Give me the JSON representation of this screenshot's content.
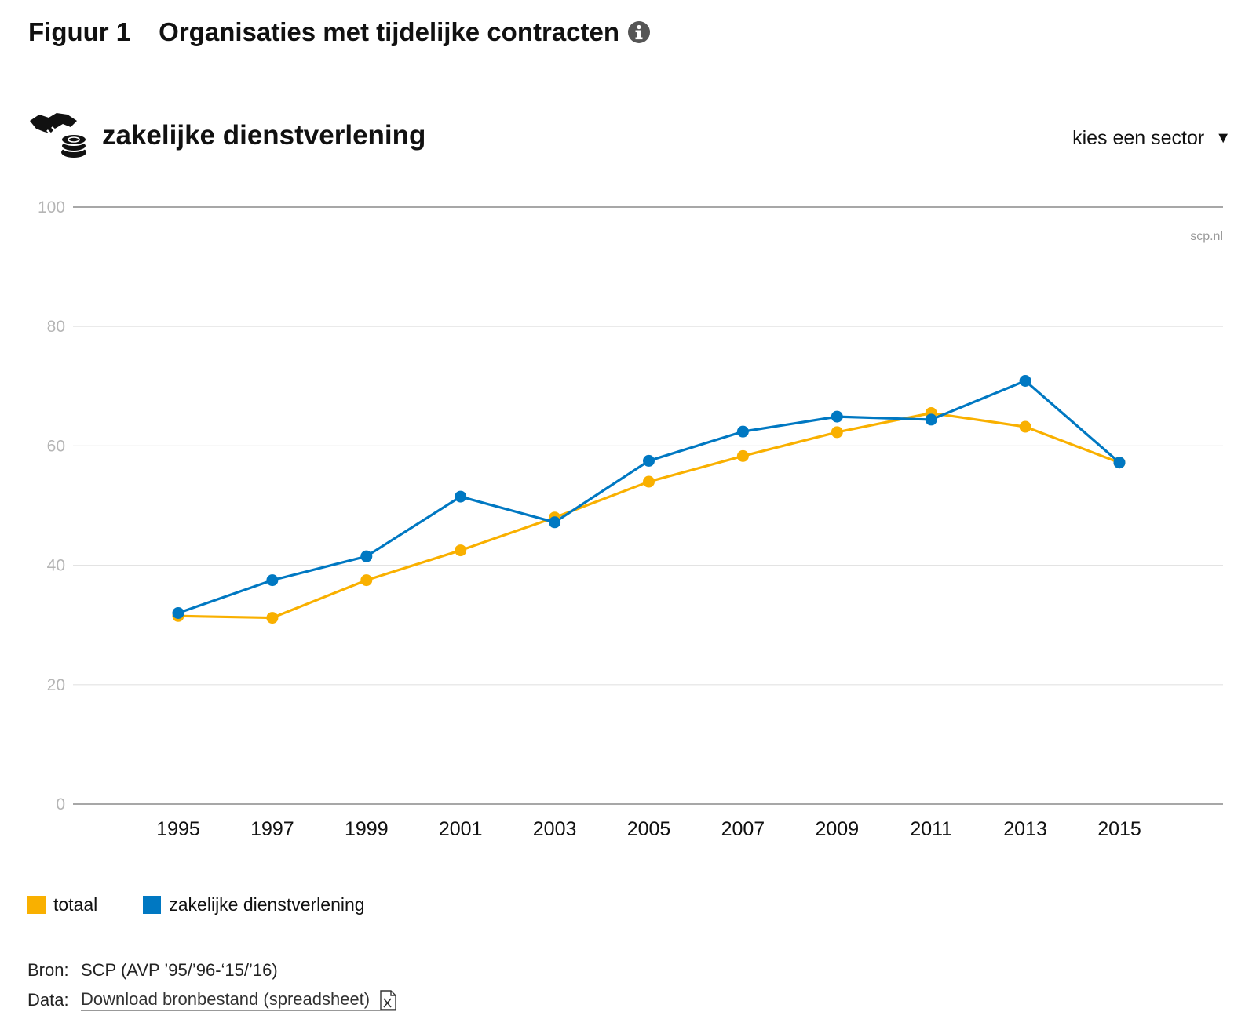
{
  "figure": {
    "label": "Figuur 1",
    "title": "Organisaties met tijdelijke contracten"
  },
  "sector": {
    "title": "zakelijke dienstverlening",
    "select_label": "kies een sector",
    "icon": "handshake-coins-icon"
  },
  "watermark": "scp.nl",
  "legend": [
    {
      "label": "totaal",
      "color": "#F9B000"
    },
    {
      "label": "zakelijke dienstverlening",
      "color": "#0078C2"
    }
  ],
  "source": {
    "bron_key": "Bron:",
    "bron_value": "SCP (AVP ’95/’96-‘15/’16)",
    "data_key": "Data:",
    "download_label": "Download bronbestand (spreadsheet)"
  },
  "chart_data": {
    "type": "line",
    "title": "",
    "xlabel": "",
    "ylabel": "",
    "ylim": [
      0,
      100
    ],
    "yticks": [
      0,
      20,
      40,
      60,
      80,
      100
    ],
    "x": [
      "1995",
      "1997",
      "1999",
      "2001",
      "2003",
      "2005",
      "2007",
      "2009",
      "2011",
      "2013",
      "2015"
    ],
    "grid": true,
    "legend_position": "bottom-left",
    "series": [
      {
        "name": "totaal",
        "color": "#F9B000",
        "values": [
          31.5,
          31.2,
          37.5,
          42.5,
          48.0,
          54.0,
          58.3,
          62.3,
          65.5,
          63.2,
          57.2
        ]
      },
      {
        "name": "zakelijke dienstverlening",
        "color": "#0078C2",
        "values": [
          32.0,
          37.5,
          41.5,
          51.5,
          47.2,
          57.5,
          62.4,
          64.9,
          64.4,
          70.9,
          57.2
        ]
      }
    ]
  }
}
